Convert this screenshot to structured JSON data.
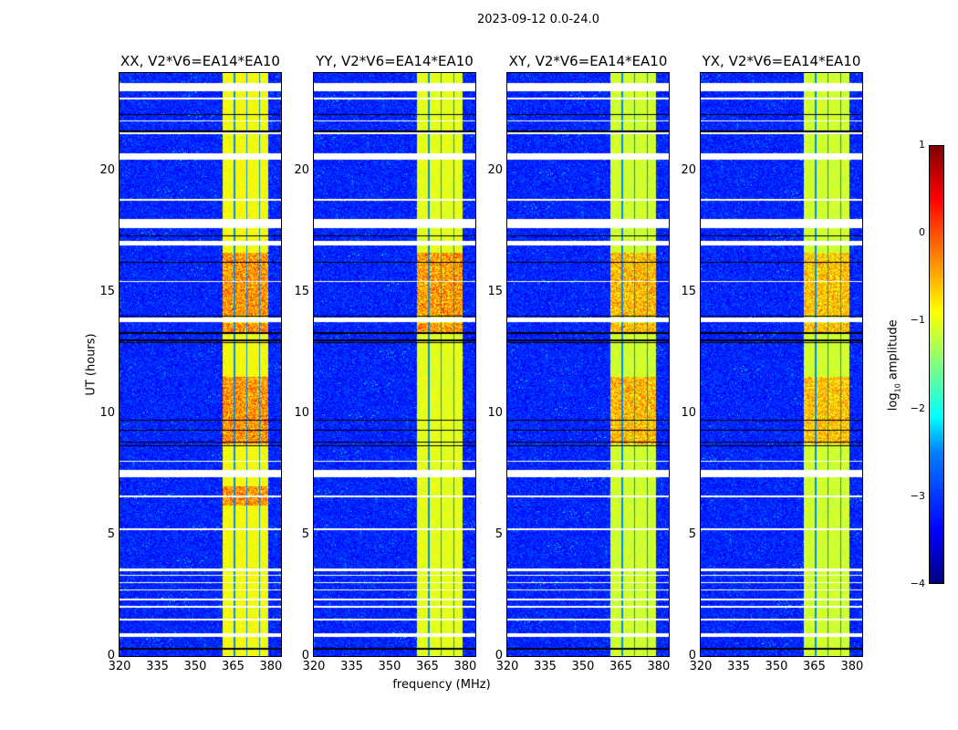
{
  "chart_data": {
    "type": "heatmap",
    "suptitle": "2023-09-12 0.0-24.0",
    "xlabel": "frequency (MHz)",
    "ylabel": "UT (hours)",
    "xlim": [
      320,
      384
    ],
    "ylim": [
      0,
      24
    ],
    "xticks": [
      "320",
      "335",
      "350",
      "365",
      "380"
    ],
    "xtick_values": [
      320,
      335,
      350,
      365,
      380
    ],
    "yticks": [
      "0",
      "5",
      "10",
      "15",
      "20"
    ],
    "ytick_values": [
      0,
      5,
      10,
      15,
      20
    ],
    "panels": [
      {
        "title": "XX, V2*V6=EA14*EA10",
        "band_level": -0.9,
        "peak_level": 0.2
      },
      {
        "title": "YY, V2*V6=EA14*EA10",
        "band_level": -1.0,
        "peak_level": 0.2
      },
      {
        "title": "XY, V2*V6=EA14*EA10",
        "band_level": -1.1,
        "peak_level": 0.0
      },
      {
        "title": "YX, V2*V6=EA14*EA10",
        "band_level": -1.1,
        "peak_level": -0.1
      }
    ],
    "background_level": -3.2,
    "rfi_band_mhz": [
      361,
      379
    ],
    "flagged_hours": [
      [
        0.8,
        0.95
      ],
      [
        1.45,
        1.55
      ],
      [
        2.0,
        2.05
      ],
      [
        2.3,
        2.35
      ],
      [
        2.7,
        2.75
      ],
      [
        3.0,
        3.05
      ],
      [
        3.3,
        3.35
      ],
      [
        3.5,
        3.6
      ],
      [
        5.2,
        5.25
      ],
      [
        6.55,
        6.6
      ],
      [
        7.35,
        7.65
      ],
      [
        8.0,
        8.05
      ],
      [
        13.75,
        13.95
      ],
      [
        15.4,
        15.45
      ],
      [
        16.9,
        17.1
      ],
      [
        17.6,
        18.0
      ],
      [
        18.75,
        18.8
      ],
      [
        20.45,
        20.7
      ],
      [
        21.5,
        21.55
      ],
      [
        22.0,
        22.05
      ],
      [
        22.9,
        23.0
      ],
      [
        23.25,
        23.6
      ]
    ],
    "black_lines_hours": [
      0.3,
      8.65,
      8.8,
      9.3,
      9.7,
      12.9,
      13.0,
      13.3,
      14.0,
      16.2,
      17.3,
      21.6,
      22.3
    ],
    "colorbar": {
      "label": "log10 amplitude",
      "label_main": "log",
      "label_sub": "10",
      "label_rest": " amplitude",
      "range": [
        -4,
        1
      ],
      "ticks": [
        "1",
        "0",
        "−1",
        "−2",
        "−3",
        "−4"
      ],
      "tick_values": [
        1,
        0,
        -1,
        -2,
        -3,
        -4
      ],
      "colormap": "jet"
    }
  }
}
